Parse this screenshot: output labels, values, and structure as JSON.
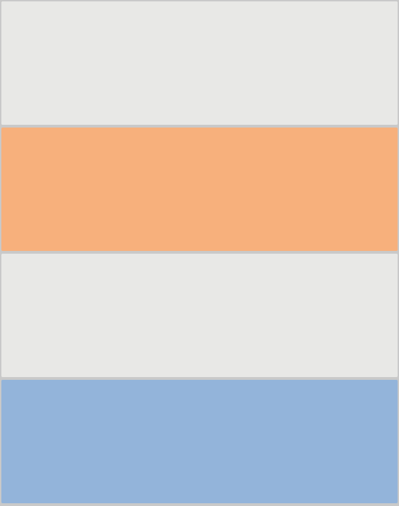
{
  "board": {
    "tiles": [
      {
        "state": "empty",
        "color": "#e8e8e6"
      },
      {
        "state": "filled",
        "color": "#f7b07c"
      },
      {
        "state": "empty",
        "color": "#e8e8e6"
      },
      {
        "state": "filled",
        "color": "#93b4da"
      }
    ],
    "border_color": "#c9c9c9"
  }
}
